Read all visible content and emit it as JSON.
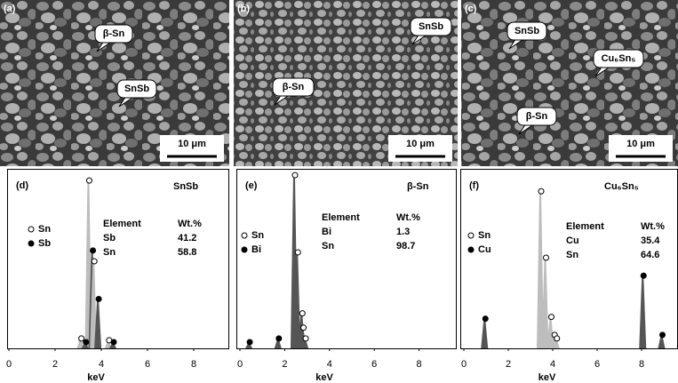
{
  "sem_panels": [
    {
      "label": "(a)",
      "callouts": [
        "β-Sn",
        "SnSb"
      ],
      "scale_bar": "10 μm"
    },
    {
      "label": "(b)",
      "callouts": [
        "SnSb",
        "β-Sn"
      ],
      "scale_bar": "10 μm"
    },
    {
      "label": "(c)",
      "callouts": [
        "SnSb",
        "Cu₆Sn₅",
        "β-Sn"
      ],
      "scale_bar": "10 μm"
    }
  ],
  "chart_data": [
    {
      "type": "spectrum",
      "label": "(d)",
      "title": "SnSb",
      "xlabel": "keV",
      "xlim": [
        0,
        9.6
      ],
      "xticks": [
        0,
        2,
        4,
        6,
        8
      ],
      "ylim": [
        0,
        100
      ],
      "legend": [
        {
          "name": "Sn",
          "marker": "open"
        },
        {
          "name": "Sb",
          "marker": "filled"
        }
      ],
      "table": {
        "header": [
          "Element",
          "Wt.%"
        ],
        "rows": [
          [
            "Sb",
            41.2
          ],
          [
            "Sn",
            58.8
          ]
        ]
      },
      "peaks": [
        {
          "x": 3.44,
          "y": 93,
          "color": "#bdbdbd",
          "marker": "open"
        },
        {
          "x": 3.6,
          "y": 54,
          "color": "#555555",
          "marker": "filled"
        },
        {
          "x": 3.66,
          "y": 48,
          "color": "#bdbdbd",
          "marker": "open"
        },
        {
          "x": 3.85,
          "y": 27,
          "color": "#555555",
          "marker": "filled"
        },
        {
          "x": 3.1,
          "y": 5,
          "color": "#bdbdbd",
          "marker": "open"
        },
        {
          "x": 3.3,
          "y": 3,
          "color": "#555555",
          "marker": "filled"
        },
        {
          "x": 4.3,
          "y": 4,
          "color": "#bdbdbd",
          "marker": "open"
        },
        {
          "x": 4.5,
          "y": 3,
          "color": "#555555",
          "marker": "filled"
        }
      ]
    },
    {
      "type": "spectrum",
      "label": "(e)",
      "title": "β-Sn",
      "xlabel": "keV",
      "xlim": [
        0,
        9.6
      ],
      "xticks": [
        0,
        2,
        4,
        6,
        8
      ],
      "ylim": [
        0,
        100
      ],
      "legend": [
        {
          "name": "Sn",
          "marker": "open"
        },
        {
          "name": "Bi",
          "marker": "filled"
        }
      ],
      "table": {
        "header": [
          "Element",
          "Wt.%"
        ],
        "rows": [
          [
            "Bi",
            1.3
          ],
          [
            "Sn",
            98.7
          ]
        ]
      },
      "peaks": [
        {
          "x": 2.42,
          "y": 96,
          "color": "#555555",
          "marker": "open"
        },
        {
          "x": 2.55,
          "y": 53,
          "color": "#555555",
          "marker": "open"
        },
        {
          "x": 2.75,
          "y": 19,
          "color": "#555555",
          "marker": "open"
        },
        {
          "x": 2.8,
          "y": 11,
          "color": "#555555",
          "marker": "open"
        },
        {
          "x": 2.9,
          "y": 5,
          "color": "#555555",
          "marker": "open"
        },
        {
          "x": 0.4,
          "y": 3,
          "color": "#555555",
          "marker": "filled"
        },
        {
          "x": 1.7,
          "y": 5,
          "color": "#555555",
          "marker": "filled"
        }
      ]
    },
    {
      "type": "spectrum",
      "label": "(f)",
      "title": "Cu₆Sn₅",
      "xlabel": "keV",
      "xlim": [
        0,
        9.6
      ],
      "xticks": [
        0,
        2,
        4,
        6,
        8
      ],
      "ylim": [
        0,
        100
      ],
      "legend": [
        {
          "name": "Sn",
          "marker": "open"
        },
        {
          "name": "Cu",
          "marker": "filled"
        }
      ],
      "table": {
        "header": [
          "Element",
          "Wt.%"
        ],
        "rows": [
          [
            "Cu",
            35.4
          ],
          [
            "Sn",
            64.6
          ]
        ]
      },
      "peaks": [
        {
          "x": 0.93,
          "y": 16,
          "color": "#555555",
          "marker": "filled"
        },
        {
          "x": 3.44,
          "y": 87,
          "color": "#bdbdbd",
          "marker": "open"
        },
        {
          "x": 3.66,
          "y": 50,
          "color": "#bdbdbd",
          "marker": "open"
        },
        {
          "x": 3.9,
          "y": 17,
          "color": "#bdbdbd",
          "marker": "open"
        },
        {
          "x": 4.05,
          "y": 7,
          "color": "#bdbdbd",
          "marker": "open"
        },
        {
          "x": 4.15,
          "y": 5,
          "color": "#bdbdbd",
          "marker": "open"
        },
        {
          "x": 8.05,
          "y": 40,
          "color": "#555555",
          "marker": "filled"
        },
        {
          "x": 8.9,
          "y": 7,
          "color": "#555555",
          "marker": "filled"
        }
      ]
    }
  ]
}
